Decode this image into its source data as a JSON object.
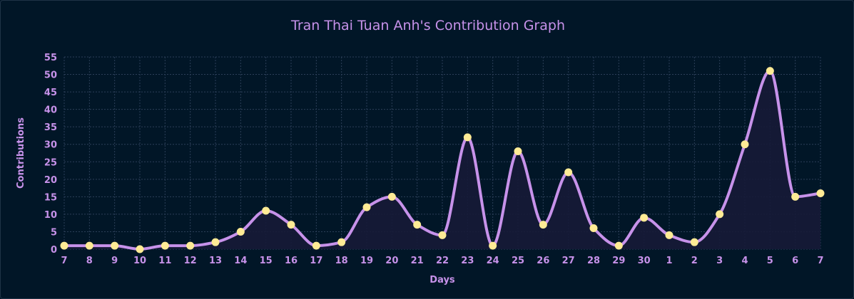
{
  "chart_data": {
    "type": "area",
    "title": "Tran Thai Tuan Anh's Contribution Graph",
    "xlabel": "Days",
    "ylabel": "Contributions",
    "ylim": [
      0,
      55
    ],
    "yticks": [
      0,
      5,
      10,
      15,
      20,
      25,
      30,
      35,
      40,
      45,
      50,
      55
    ],
    "grid": true,
    "categories": [
      "7",
      "8",
      "9",
      "10",
      "11",
      "12",
      "13",
      "14",
      "15",
      "16",
      "17",
      "18",
      "19",
      "20",
      "21",
      "22",
      "23",
      "24",
      "25",
      "26",
      "27",
      "28",
      "29",
      "30",
      "1",
      "2",
      "3",
      "4",
      "5",
      "6",
      "7"
    ],
    "series": [
      {
        "values": [
          1,
          1,
          1,
          0,
          1,
          1,
          2,
          5,
          11,
          7,
          1,
          2,
          12,
          15,
          7,
          4,
          32,
          1,
          28,
          7,
          22,
          6,
          1,
          9,
          4,
          2,
          10,
          30,
          51,
          15,
          16
        ]
      }
    ],
    "colors": {
      "background": "#011627",
      "line": "#c792ea",
      "point": "#ffeb95",
      "text": "#c792ea",
      "grid": "#2c3f58",
      "area": "#161a37"
    }
  }
}
